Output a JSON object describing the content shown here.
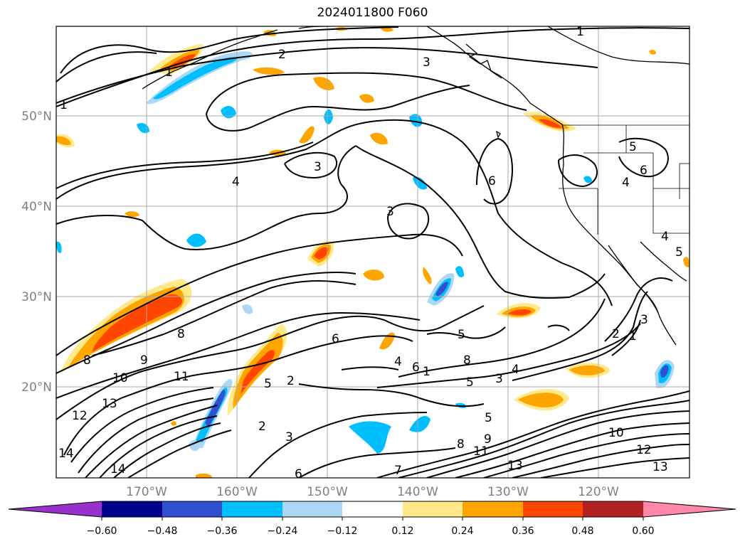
{
  "title": "2024011800 F060",
  "latitude_labels": [
    "50°N",
    "40°N",
    "30°N",
    "20°N"
  ],
  "longitude_labels": [
    "170°W",
    "160°W",
    "150°W",
    "140°W",
    "130°W",
    "120°W"
  ],
  "colorbar": {
    "tick_labels": [
      "−0.60",
      "−0.48",
      "−0.36",
      "−0.24",
      "−0.12",
      "0.12",
      "0.24",
      "0.36",
      "0.48",
      "0.60"
    ],
    "colors": [
      "#9932cc",
      "#00008b",
      "#3050d0",
      "#00bfff",
      "#add8f5",
      "#ffffff",
      "#ffe98a",
      "#ffa500",
      "#ff4500",
      "#b22222",
      "#ff88aa"
    ]
  },
  "contour_labels": [
    "1",
    "2",
    "3",
    "1",
    "1",
    "3",
    "4",
    "3",
    "4",
    "6",
    "5",
    "6",
    "4",
    "5",
    "3",
    "8",
    "9",
    "10",
    "11",
    "13",
    "12",
    "14",
    "8",
    "2",
    "6",
    "5",
    "4",
    "6",
    "1",
    "8",
    "5",
    "3",
    "4",
    "5",
    "9",
    "8",
    "11",
    "3",
    "2",
    "7",
    "6",
    "10",
    "12",
    "13",
    "13",
    "2",
    "1",
    "5",
    "14"
  ]
}
